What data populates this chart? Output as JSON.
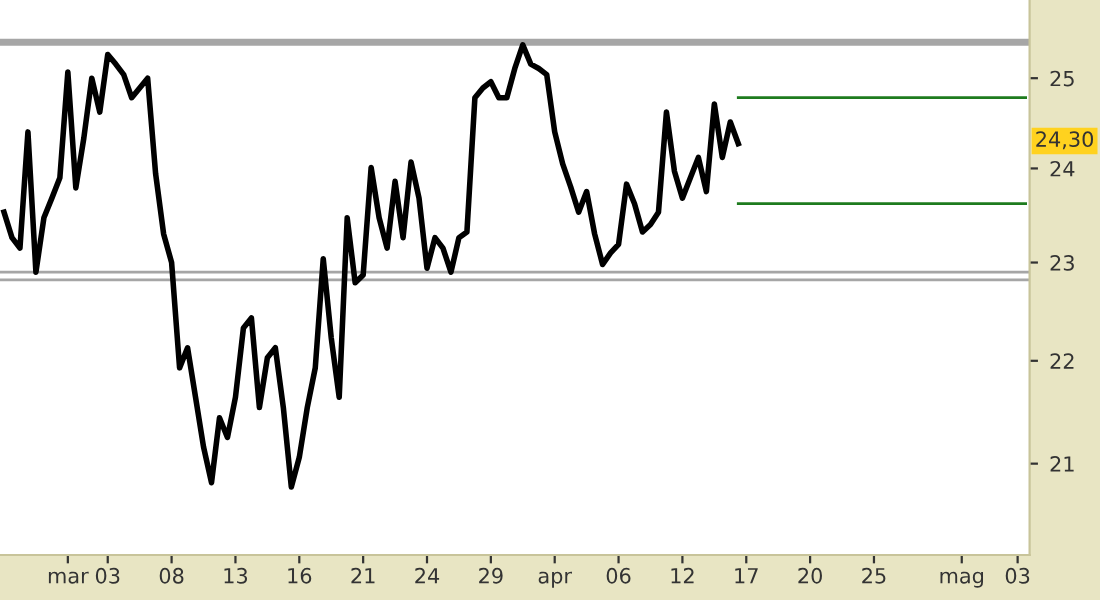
{
  "chart_data": {
    "type": "line",
    "log": true,
    "grid": false,
    "legend": false,
    "categories": [
      null,
      null,
      null,
      null,
      null,
      null,
      null,
      null,
      "mar",
      null,
      null,
      null,
      null,
      "03",
      null,
      null,
      null,
      null,
      null,
      null,
      null,
      "08",
      null,
      null,
      null,
      null,
      null,
      null,
      null,
      "13",
      null,
      null,
      null,
      null,
      null,
      null,
      null,
      "16",
      null,
      null,
      null,
      null,
      null,
      null,
      null,
      "21",
      null,
      null,
      null,
      null,
      null,
      null,
      null,
      "24",
      null,
      null,
      null,
      null,
      null,
      null,
      null,
      "29",
      null,
      null,
      null,
      null,
      null,
      null,
      null,
      "apr",
      null,
      null,
      null,
      null,
      null,
      null,
      null,
      "06",
      null,
      null,
      null,
      null,
      null,
      null,
      null,
      "12",
      null,
      null,
      null,
      null,
      null,
      null,
      null,
      "17",
      null,
      null,
      null,
      null,
      null,
      null,
      null,
      "20",
      null,
      null,
      null,
      null,
      null,
      null,
      null,
      "25",
      null,
      null,
      null,
      null,
      null,
      null,
      null,
      null,
      null,
      null,
      "mag",
      null,
      null,
      null,
      null,
      null,
      null,
      "03",
      null
    ],
    "ylim": [
      20.15,
      25.9
    ],
    "yticks": [
      21,
      22,
      23,
      24,
      25
    ],
    "annotations": [
      {
        "text": "24,30",
        "y": 24.3
      }
    ],
    "ref_lines": [
      {
        "axis": "y",
        "value": 25.41,
        "color": "#a6a6a6"
      },
      {
        "axis": "y",
        "value": 22.9,
        "color": "#a6a6a6"
      },
      {
        "axis": "y",
        "value": 22.82,
        "color": "#a6a6a6"
      }
    ],
    "series": [
      {
        "color": "#000000",
        "values": [
          23.53,
          23.26,
          23.15,
          24.4,
          22.9,
          23.47,
          23.68,
          23.9,
          25.07,
          23.79,
          24.33,
          25.0,
          24.62,
          25.27,
          25.16,
          25.04,
          24.78,
          24.89,
          25.0,
          23.94,
          23.3,
          23.0,
          21.93,
          22.13,
          21.64,
          21.16,
          20.82,
          21.44,
          21.25,
          21.64,
          22.33,
          22.43,
          21.54,
          22.03,
          22.13,
          21.54,
          20.78,
          21.06,
          21.54,
          21.93,
          23.04,
          22.23,
          21.64,
          23.47,
          22.79,
          22.87,
          24.01,
          23.47,
          23.15,
          23.86,
          23.26,
          24.07,
          23.68,
          22.94,
          23.26,
          23.15,
          22.9,
          23.26,
          23.32,
          24.78,
          24.89,
          24.96,
          24.78,
          24.78,
          25.11,
          25.38,
          25.16,
          25.11,
          25.04,
          24.4,
          24.05,
          23.8,
          23.53,
          23.75,
          23.3,
          22.98,
          23.1,
          23.19,
          23.83,
          23.62,
          23.32,
          23.4,
          23.53,
          24.62,
          23.97,
          23.68,
          23.9,
          24.12,
          23.75,
          24.71,
          24.12,
          24.51,
          24.27,
          null,
          null,
          null,
          null,
          null,
          null,
          null,
          null,
          null,
          null,
          null,
          null,
          null,
          null,
          null,
          null,
          null,
          null,
          null,
          null,
          null,
          null,
          null,
          null,
          null,
          null,
          null,
          null,
          null,
          null,
          null,
          null,
          null,
          null,
          null,
          null
        ]
      },
      {
        "color": "#1e7b1e",
        "values": [
          null,
          null,
          null,
          null,
          null,
          null,
          null,
          null,
          null,
          null,
          null,
          null,
          null,
          null,
          null,
          null,
          null,
          null,
          null,
          null,
          null,
          null,
          null,
          null,
          null,
          null,
          null,
          null,
          null,
          null,
          null,
          null,
          null,
          null,
          null,
          null,
          null,
          null,
          null,
          null,
          null,
          null,
          null,
          null,
          null,
          null,
          null,
          null,
          null,
          null,
          null,
          null,
          null,
          null,
          null,
          null,
          null,
          null,
          null,
          null,
          null,
          null,
          null,
          null,
          null,
          null,
          null,
          null,
          null,
          null,
          null,
          null,
          null,
          null,
          null,
          null,
          null,
          null,
          null,
          null,
          null,
          null,
          null,
          null,
          null,
          null,
          null,
          null,
          null,
          null,
          null,
          null,
          24.78,
          24.78,
          24.78,
          24.78,
          24.78,
          24.78,
          24.78,
          24.78,
          24.78,
          24.78,
          24.78,
          24.78,
          24.78,
          24.78,
          24.78,
          24.78,
          24.78,
          24.78,
          24.78,
          24.78,
          24.78,
          24.78,
          24.78,
          24.78,
          24.78,
          24.78,
          24.78,
          24.78,
          24.78,
          24.78,
          24.78,
          24.78,
          24.78,
          24.78,
          24.78,
          24.78,
          24.78
        ]
      },
      {
        "color": "#1e7b1e",
        "values": [
          null,
          null,
          null,
          null,
          null,
          null,
          null,
          null,
          null,
          null,
          null,
          null,
          null,
          null,
          null,
          null,
          null,
          null,
          null,
          null,
          null,
          null,
          null,
          null,
          null,
          null,
          null,
          null,
          null,
          null,
          null,
          null,
          null,
          null,
          null,
          null,
          null,
          null,
          null,
          null,
          null,
          null,
          null,
          null,
          null,
          null,
          null,
          null,
          null,
          null,
          null,
          null,
          null,
          null,
          null,
          null,
          null,
          null,
          null,
          null,
          null,
          null,
          null,
          null,
          null,
          null,
          null,
          null,
          null,
          null,
          null,
          null,
          null,
          null,
          null,
          null,
          null,
          null,
          null,
          null,
          null,
          null,
          null,
          null,
          null,
          null,
          null,
          null,
          null,
          null,
          null,
          null,
          23.62,
          23.62,
          23.62,
          23.62,
          23.62,
          23.62,
          23.62,
          23.62,
          23.62,
          23.62,
          23.62,
          23.62,
          23.62,
          23.62,
          23.62,
          23.62,
          23.62,
          23.62,
          23.62,
          23.62,
          23.62,
          23.62,
          23.62,
          23.62,
          23.62,
          23.62,
          23.62,
          23.62,
          23.62,
          23.62,
          23.62,
          23.62,
          23.62,
          23.62,
          23.62,
          23.62,
          23.62
        ]
      }
    ]
  }
}
